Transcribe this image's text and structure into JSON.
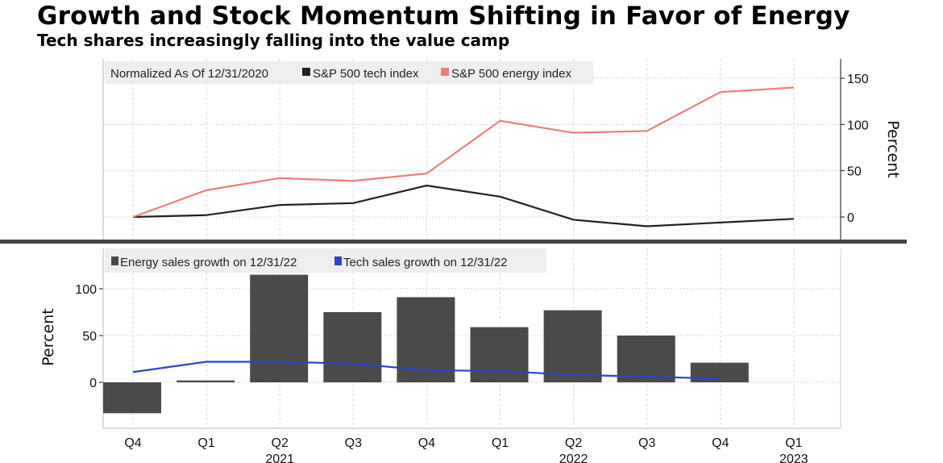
{
  "title": "Growth and Stock Momentum Shifting in Favor of Energy",
  "subtitle": "Tech shares increasingly falling into the value camp",
  "chart_data": [
    {
      "type": "line",
      "legend_note": "Normalized As Of 12/31/2020",
      "categories": [
        "Q4",
        "Q1",
        "Q2",
        "Q3",
        "Q4",
        "Q1",
        "Q2",
        "Q3",
        "Q4",
        "Q1"
      ],
      "year_labels": {
        "2": "2021",
        "6": "2022",
        "9": "2023"
      },
      "ylabel": "Percent",
      "yaxis_side": "right",
      "yticks": [
        0,
        50,
        100,
        150
      ],
      "ylim": [
        -25,
        170
      ],
      "grid": true,
      "legend_placement": "top-left",
      "series": [
        {
          "name": "S&P 500 tech index",
          "color": "#222222",
          "values": [
            0,
            2,
            13,
            15,
            34,
            22,
            -3,
            -10,
            -6,
            -2
          ]
        },
        {
          "name": "S&P 500 energy index",
          "color": "#e8807a",
          "values": [
            0,
            29,
            42,
            39,
            47,
            104,
            91,
            93,
            135,
            140
          ]
        }
      ]
    },
    {
      "type": "bar",
      "categories": [
        "Q4",
        "Q1",
        "Q2",
        "Q3",
        "Q4",
        "Q1",
        "Q2",
        "Q3",
        "Q4",
        "Q1"
      ],
      "year_labels": {
        "2": "2021",
        "6": "2022",
        "9": "2023"
      },
      "ylabel": "Percent",
      "yaxis_side": "left",
      "yticks": [
        0,
        50,
        100
      ],
      "ylim": [
        -48,
        140
      ],
      "grid": true,
      "legend_placement": "top-left",
      "series": [
        {
          "name": "Energy sales growth on 12/31/22",
          "type": "bar",
          "color": "#4a4a4a",
          "values": [
            -33,
            2,
            115,
            75,
            91,
            59,
            77,
            50,
            21,
            null
          ]
        },
        {
          "name": "Tech sales growth on 12/31/22",
          "type": "line",
          "color": "#2a46c4",
          "values": [
            11,
            22,
            22,
            20,
            13,
            12,
            8,
            6,
            4,
            null
          ]
        }
      ]
    }
  ]
}
